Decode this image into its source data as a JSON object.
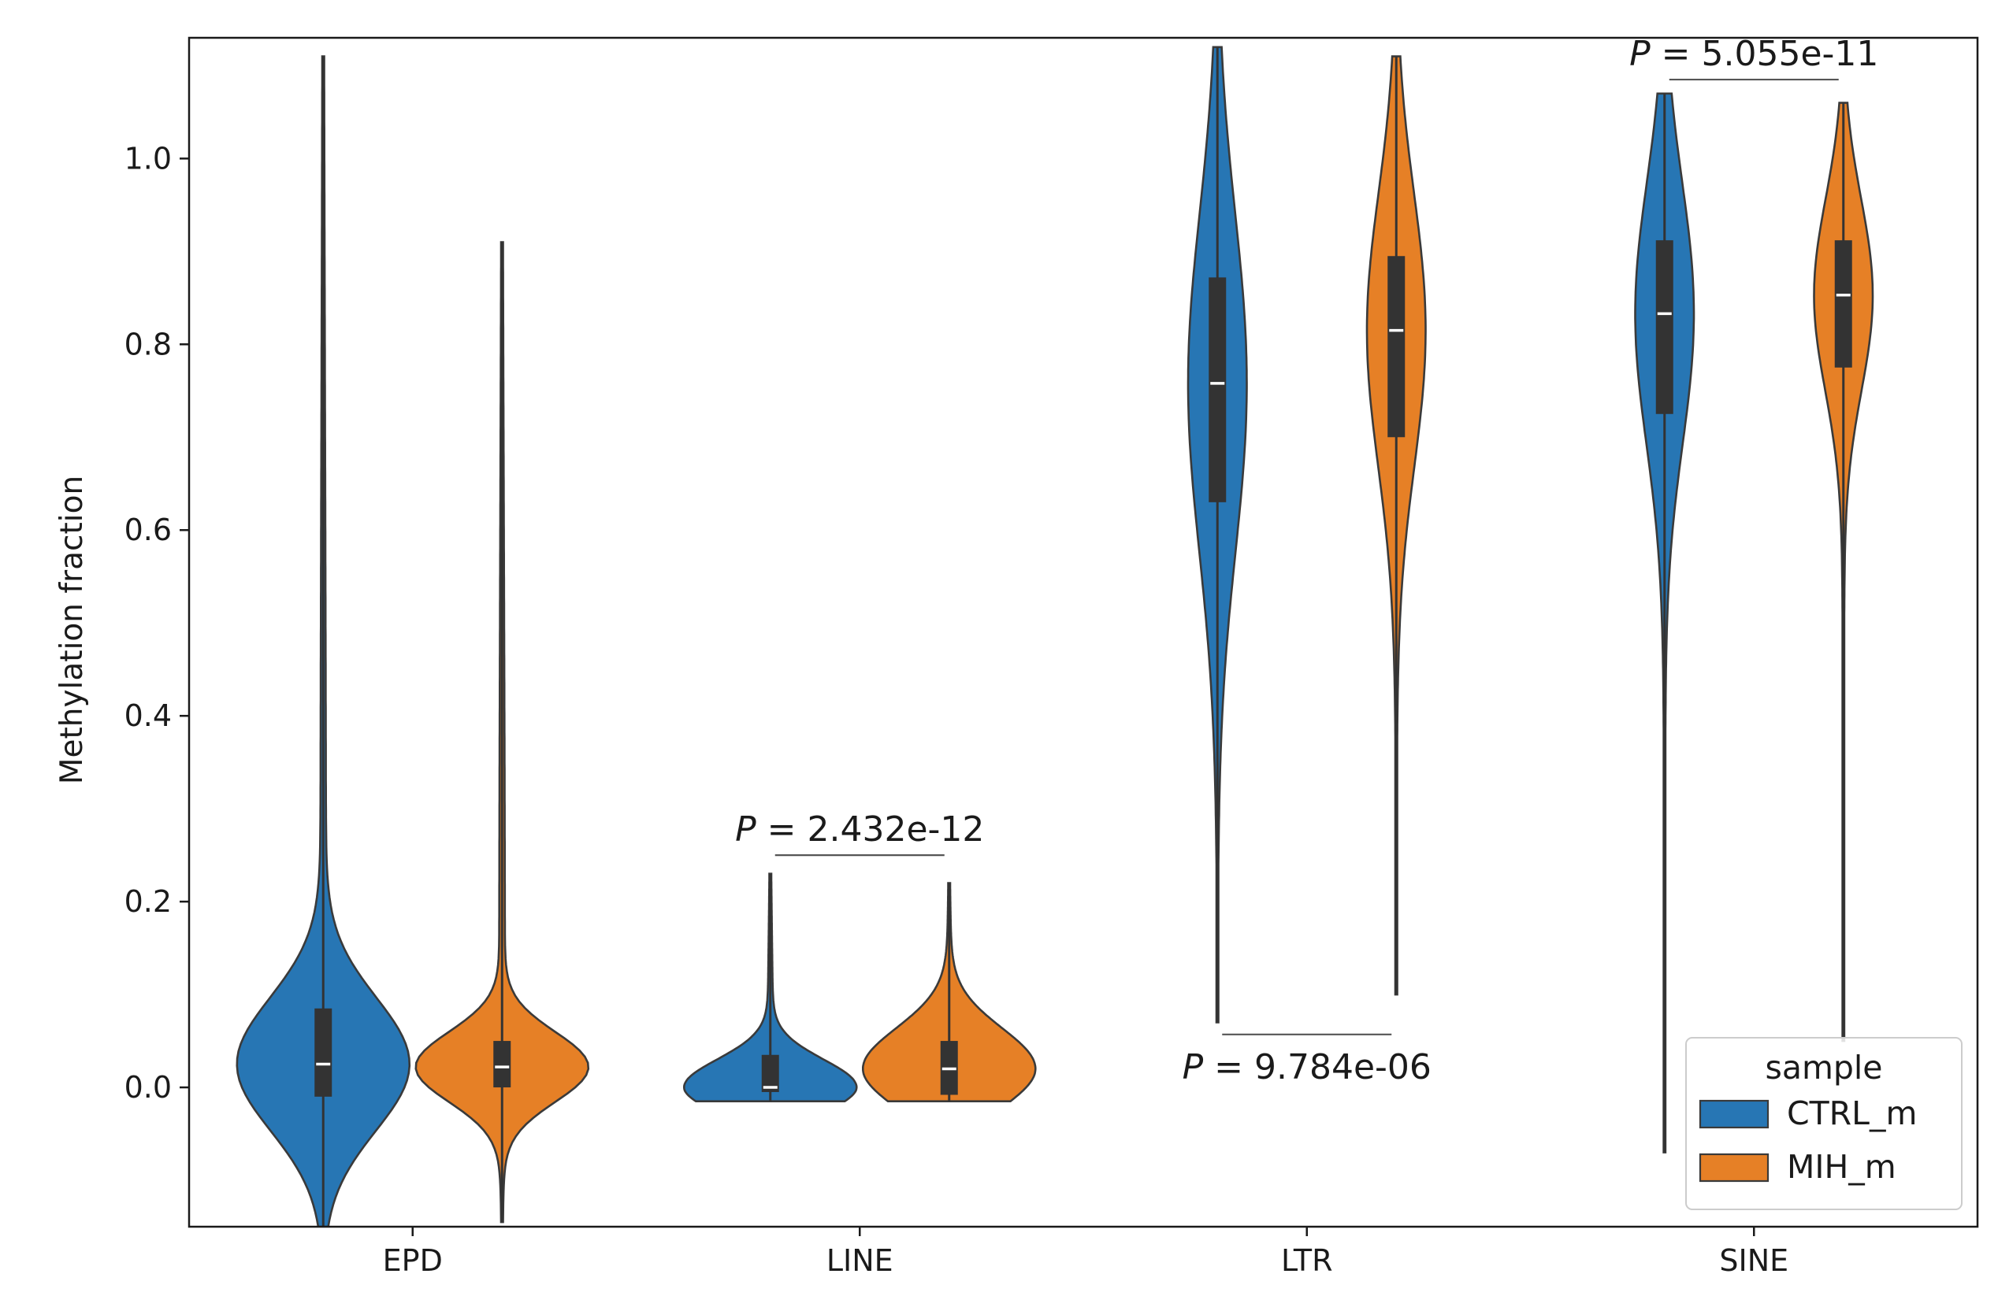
{
  "chart_data": {
    "type": "violin",
    "title": "",
    "xlabel": "",
    "ylabel": "Methylation fraction",
    "ylim": [
      -0.15,
      1.13
    ],
    "yticks": [
      0.0,
      0.2,
      0.4,
      0.6,
      0.8,
      1.0
    ],
    "ytick_labels": [
      "0.0",
      "0.2",
      "0.4",
      "0.6",
      "0.8",
      "1.0"
    ],
    "categories": [
      "EPD",
      "LINE",
      "LTR",
      "SINE"
    ],
    "grid": false,
    "legend": {
      "title": "sample",
      "position": "lower-right",
      "entries": [
        "CTRL_m",
        "MIH_m"
      ]
    },
    "colors": {
      "CTRL_m": "#2776b4",
      "MIH_m": "#e68026"
    },
    "series": [
      {
        "name": "CTRL_m",
        "violins": [
          {
            "category": "EPD",
            "min": -0.15,
            "max": 1.11,
            "q1": -0.01,
            "median": 0.025,
            "q3": 0.085
          },
          {
            "category": "LINE",
            "min": -0.015,
            "max": 0.23,
            "q1": -0.005,
            "median": 0.0,
            "q3": 0.035
          },
          {
            "category": "LTR",
            "min": 0.07,
            "max": 1.12,
            "q1": 0.63,
            "median": 0.758,
            "q3": 0.872
          },
          {
            "category": "SINE",
            "min": -0.07,
            "max": 1.07,
            "q1": 0.725,
            "median": 0.833,
            "q3": 0.912
          }
        ]
      },
      {
        "name": "MIH_m",
        "violins": [
          {
            "category": "EPD",
            "min": -0.145,
            "max": 0.91,
            "q1": 0.0,
            "median": 0.022,
            "q3": 0.05
          },
          {
            "category": "LINE",
            "min": -0.015,
            "max": 0.22,
            "q1": -0.008,
            "median": 0.02,
            "q3": 0.05
          },
          {
            "category": "LTR",
            "min": 0.1,
            "max": 1.11,
            "q1": 0.7,
            "median": 0.815,
            "q3": 0.895
          },
          {
            "category": "SINE",
            "min": 0.05,
            "max": 1.06,
            "q1": 0.775,
            "median": 0.853,
            "q3": 0.912
          }
        ]
      }
    ],
    "annotations": [
      {
        "category": "LINE",
        "p_label": "P",
        "p_value": "= 2.432e-12",
        "bracket_y": 0.25,
        "placement": "above"
      },
      {
        "category": "LTR",
        "p_label": "P",
        "p_value": "= 9.784e-06",
        "bracket_y": 0.057,
        "placement": "below"
      },
      {
        "category": "SINE",
        "p_label": "P",
        "p_value": "= 5.055e-11",
        "bracket_y": 1.085,
        "placement": "above"
      }
    ]
  }
}
